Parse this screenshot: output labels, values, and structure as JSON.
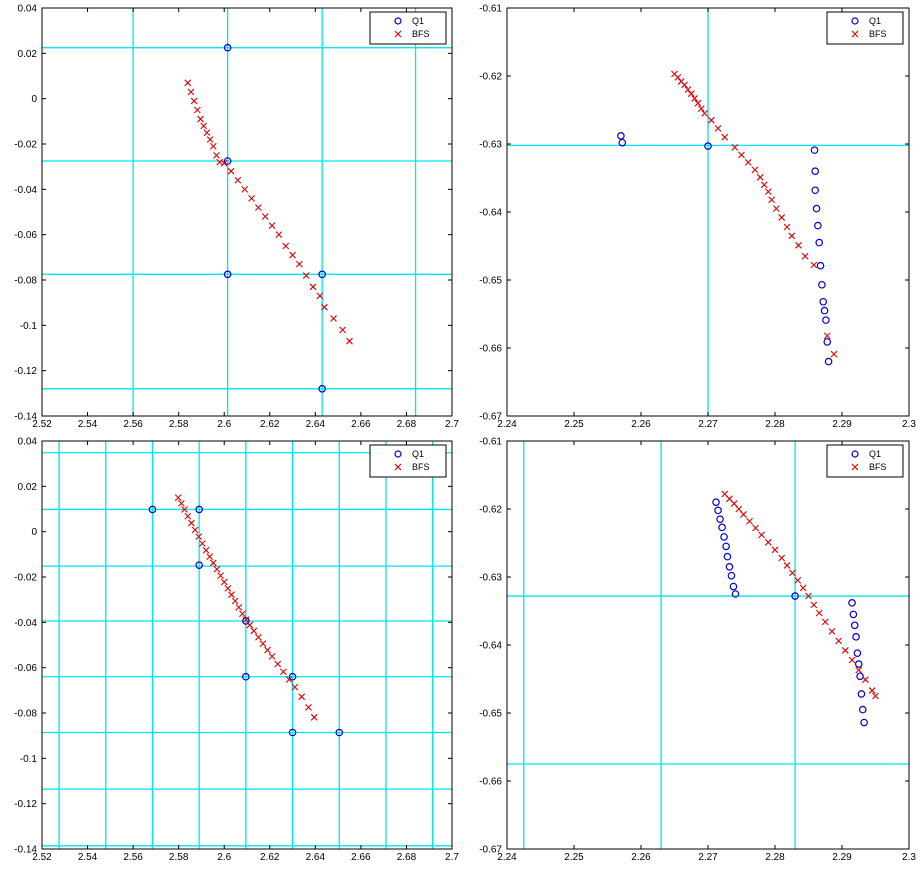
{
  "colors": {
    "q1": "#0000cc",
    "bfs": "#e00000",
    "grid": "#00e5ee",
    "axes": "#000000"
  },
  "legend_labels": [
    "Q1",
    "BFS"
  ],
  "chart_data": [
    {
      "type": "scatter",
      "xlim": [
        2.52,
        2.7
      ],
      "ylim": [
        -0.14,
        0.04
      ],
      "xticks": [
        "2.52",
        "2.54",
        "2.56",
        "2.58",
        "2.6",
        "2.62",
        "2.64",
        "2.66",
        "2.68",
        "2.7"
      ],
      "yticks": [
        "0.04",
        "0.02",
        "0",
        "-0.02",
        "-0.04",
        "-0.06",
        "-0.08",
        "-0.1",
        "-0.12",
        "-0.14"
      ],
      "legend": "top-right",
      "grid_x": [
        2.56,
        2.6015,
        2.643,
        2.684
      ],
      "grid_y": [
        0.0225,
        -0.0275,
        -0.0775,
        -0.128
      ],
      "series": [
        {
          "name": "Q1",
          "marker": "o",
          "x": [
            2.6015,
            2.6015,
            2.6015,
            2.643,
            2.643
          ],
          "y": [
            0.0225,
            -0.0275,
            -0.0775,
            -0.0775,
            -0.128
          ]
        },
        {
          "name": "BFS",
          "marker": "x",
          "x": [
            2.584,
            2.5854,
            2.5868,
            2.5882,
            2.5896,
            2.591,
            2.5924,
            2.5938,
            2.5952,
            2.5966,
            2.598,
            2.6,
            2.603,
            2.606,
            2.609,
            2.612,
            2.615,
            2.618,
            2.621,
            2.624,
            2.627,
            2.63,
            2.633,
            2.636,
            2.639,
            2.642,
            2.644,
            2.648,
            2.652,
            2.655
          ],
          "y": [
            0.007,
            0.003,
            -0.001,
            -0.005,
            -0.009,
            -0.012,
            -0.015,
            -0.018,
            -0.021,
            -0.025,
            -0.028,
            -0.0285,
            -0.032,
            -0.036,
            -0.04,
            -0.044,
            -0.048,
            -0.052,
            -0.056,
            -0.06,
            -0.065,
            -0.069,
            -0.073,
            -0.078,
            -0.083,
            -0.087,
            -0.092,
            -0.097,
            -0.102,
            -0.107
          ]
        }
      ]
    },
    {
      "type": "scatter",
      "xlim": [
        2.24,
        2.3
      ],
      "ylim": [
        -0.67,
        -0.61
      ],
      "xticks": [
        "2.24",
        "2.25",
        "2.26",
        "2.27",
        "2.28",
        "2.29",
        "2.3"
      ],
      "yticks": [
        "-0.61",
        "-0.62",
        "-0.63",
        "-0.64",
        "-0.65",
        "-0.66",
        "-0.67"
      ],
      "legend": "top-right",
      "grid_x": [
        2.27
      ],
      "grid_y": [
        -0.6302
      ],
      "series": [
        {
          "name": "Q1",
          "marker": "o",
          "x": [
            2.257,
            2.2572,
            2.27,
            2.2859,
            2.286,
            2.286,
            2.2862,
            2.2864,
            2.2866,
            2.2868,
            2.287,
            2.2872,
            2.2874,
            2.2876,
            2.2878,
            2.288
          ],
          "y": [
            -0.6288,
            -0.6298,
            -0.6303,
            -0.6309,
            -0.634,
            -0.6368,
            -0.6395,
            -0.642,
            -0.6445,
            -0.6479,
            -0.6507,
            -0.6532,
            -0.6545,
            -0.6559,
            -0.6591,
            -0.662
          ]
        },
        {
          "name": "BFS",
          "marker": "x",
          "x": [
            2.265,
            2.2655,
            2.266,
            2.2665,
            2.267,
            2.2675,
            2.268,
            2.2685,
            2.269,
            2.2695,
            2.2705,
            2.2715,
            2.2725,
            2.274,
            2.275,
            2.276,
            2.277,
            2.2778,
            2.2784,
            2.279,
            2.2795,
            2.2802,
            2.281,
            2.2818,
            2.2825,
            2.2835,
            2.2845,
            2.2858,
            2.2878,
            2.2888
          ],
          "y": [
            -0.6197,
            -0.6202,
            -0.6208,
            -0.6213,
            -0.622,
            -0.6226,
            -0.6233,
            -0.624,
            -0.6248,
            -0.6255,
            -0.6265,
            -0.6277,
            -0.629,
            -0.6305,
            -0.6316,
            -0.6327,
            -0.6338,
            -0.6349,
            -0.636,
            -0.637,
            -0.6382,
            -0.6395,
            -0.6408,
            -0.6422,
            -0.6435,
            -0.6449,
            -0.6465,
            -0.6478,
            -0.6582,
            -0.6609
          ]
        }
      ]
    },
    {
      "type": "scatter",
      "xlim": [
        2.52,
        2.7
      ],
      "ylim": [
        -0.14,
        0.04
      ],
      "xticks": [
        "2.52",
        "2.54",
        "2.56",
        "2.58",
        "2.6",
        "2.62",
        "2.64",
        "2.66",
        "2.68",
        "2.7"
      ],
      "yticks": [
        "0.04",
        "0.02",
        "0",
        "-0.02",
        "-0.04",
        "-0.06",
        "-0.08",
        "-0.1",
        "-0.12",
        "-0.14"
      ],
      "legend": "top-right",
      "grid_x": [
        2.5275,
        2.548,
        2.5685,
        2.589,
        2.6095,
        2.63,
        2.6505,
        2.671,
        2.6915
      ],
      "grid_y": [
        0.0348,
        0.0098,
        -0.0152,
        -0.0394,
        -0.064,
        -0.0886,
        -0.1136,
        -0.1386
      ],
      "series": [
        {
          "name": "Q1",
          "marker": "o",
          "x": [
            2.5685,
            2.589,
            2.589,
            2.6095,
            2.6095,
            2.63,
            2.63,
            2.6505
          ],
          "y": [
            0.0098,
            0.0098,
            -0.0148,
            -0.0394,
            -0.064,
            -0.064,
            -0.0886,
            -0.0886
          ]
        },
        {
          "name": "BFS",
          "marker": "x",
          "x": [
            2.5798,
            2.5812,
            2.5826,
            2.584,
            2.5856,
            2.5872,
            2.5888,
            2.5904,
            2.592,
            2.5936,
            2.5952,
            2.5968,
            2.5984,
            2.6,
            2.6016,
            2.6032,
            2.6048,
            2.6064,
            2.608,
            2.6096,
            2.6112,
            2.613,
            2.615,
            2.617,
            2.619,
            2.621,
            2.6235,
            2.626,
            2.6285,
            2.631,
            2.634,
            2.637,
            2.6395
          ],
          "y": [
            0.015,
            0.0125,
            0.0098,
            0.0068,
            0.0038,
            0.0008,
            -0.0022,
            -0.0052,
            -0.0082,
            -0.011,
            -0.0138,
            -0.0166,
            -0.0194,
            -0.0222,
            -0.025,
            -0.0278,
            -0.0306,
            -0.0334,
            -0.0362,
            -0.0388,
            -0.0412,
            -0.0438,
            -0.0466,
            -0.0494,
            -0.0522,
            -0.055,
            -0.0584,
            -0.0618,
            -0.0652,
            -0.0686,
            -0.0728,
            -0.0775,
            -0.0819
          ]
        }
      ]
    },
    {
      "type": "scatter",
      "xlim": [
        2.24,
        2.3
      ],
      "ylim": [
        -0.67,
        -0.61
      ],
      "xticks": [
        "2.24",
        "2.25",
        "2.26",
        "2.27",
        "2.28",
        "2.29",
        "2.3"
      ],
      "yticks": [
        "-0.61",
        "-0.62",
        "-0.63",
        "-0.64",
        "-0.65",
        "-0.66",
        "-0.67"
      ],
      "legend": "top-right",
      "grid_x": [
        2.2425,
        2.263,
        2.283
      ],
      "grid_y": [
        -0.6328,
        -0.6575
      ],
      "series": [
        {
          "name": "Q1",
          "marker": "o",
          "x": [
            2.2712,
            2.2715,
            2.2718,
            2.2721,
            2.2724,
            2.2727,
            2.2729,
            2.2732,
            2.2735,
            2.2738,
            2.2741,
            2.283,
            2.2915,
            2.2917,
            2.2919,
            2.2921,
            2.2923,
            2.2925,
            2.2927,
            2.2929,
            2.2931,
            2.2933
          ],
          "y": [
            -0.619,
            -0.6202,
            -0.6215,
            -0.6227,
            -0.6241,
            -0.6255,
            -0.627,
            -0.6285,
            -0.6298,
            -0.6314,
            -0.6325,
            -0.6328,
            -0.6338,
            -0.6355,
            -0.6371,
            -0.6388,
            -0.6412,
            -0.6428,
            -0.6446,
            -0.6472,
            -0.6495,
            -0.6514
          ]
        },
        {
          "name": "BFS",
          "marker": "x",
          "x": [
            2.2725,
            2.2732,
            2.2739,
            2.2746,
            2.2753,
            2.2762,
            2.2771,
            2.278,
            2.279,
            2.28,
            2.281,
            2.2818,
            2.2826,
            2.2834,
            2.2842,
            2.285,
            2.2858,
            2.2866,
            2.2875,
            2.2885,
            2.2895,
            2.2905,
            2.2915,
            2.2925,
            2.2935,
            2.2945,
            2.295
          ],
          "y": [
            -0.6178,
            -0.6185,
            -0.6192,
            -0.62,
            -0.6208,
            -0.6218,
            -0.6228,
            -0.6238,
            -0.6249,
            -0.626,
            -0.6272,
            -0.6283,
            -0.6294,
            -0.6305,
            -0.6316,
            -0.6328,
            -0.6341,
            -0.6353,
            -0.6366,
            -0.638,
            -0.6394,
            -0.6408,
            -0.6422,
            -0.6437,
            -0.6451,
            -0.6467,
            -0.6475
          ]
        }
      ]
    }
  ]
}
